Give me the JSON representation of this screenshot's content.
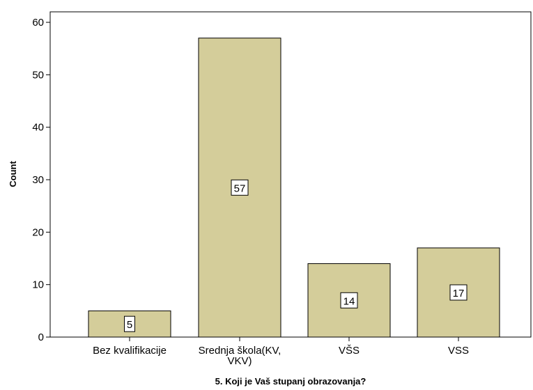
{
  "chart_data": {
    "type": "bar",
    "title": "",
    "xlabel": "5. Koji je Vaš stupanj obrazovanja?",
    "ylabel": "Count",
    "categories": [
      "Bez kvalifikacije",
      "Srednja škola(KV, VKV)",
      "VŠS",
      "VSS"
    ],
    "category_lines": [
      [
        "Bez kvalifikacije"
      ],
      [
        "Srednja škola(KV,",
        "VKV)"
      ],
      [
        "VŠS"
      ],
      [
        "VSS"
      ]
    ],
    "values": [
      5,
      57,
      14,
      17
    ],
    "ylim": [
      0,
      62
    ],
    "yticks": [
      0,
      10,
      20,
      30,
      40,
      50,
      60
    ],
    "grid": false,
    "legend": "none",
    "colors": {
      "bar_fill": "#d4cd9a",
      "bar_stroke": "#000000",
      "plot_background": "#ffffff",
      "axis": "#000000"
    }
  }
}
